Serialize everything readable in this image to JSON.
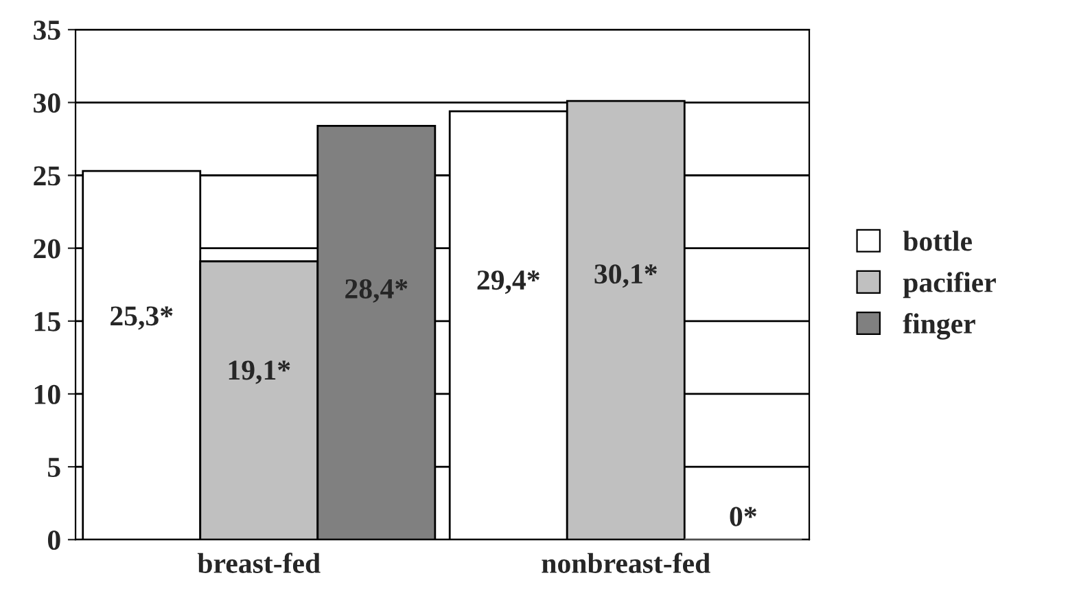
{
  "chart_data": {
    "type": "bar",
    "categories": [
      "breast-fed",
      "nonbreast-fed"
    ],
    "series": [
      {
        "name": "bottle",
        "color": "#ffffff",
        "values": [
          25.3,
          29.4
        ],
        "value_labels": [
          "25,3*",
          "29,4*"
        ]
      },
      {
        "name": "pacifier",
        "color": "#c0c0c0",
        "values": [
          19.1,
          30.1
        ],
        "value_labels": [
          "19,1*",
          "30,1*"
        ]
      },
      {
        "name": "finger",
        "color": "#808080",
        "values": [
          28.4,
          0
        ],
        "value_labels": [
          "28,4*",
          "0*"
        ]
      }
    ],
    "ylim": [
      0,
      35
    ],
    "yticks": [
      0,
      5,
      10,
      15,
      20,
      25,
      30,
      35
    ],
    "grid": "y",
    "legend": "right"
  }
}
